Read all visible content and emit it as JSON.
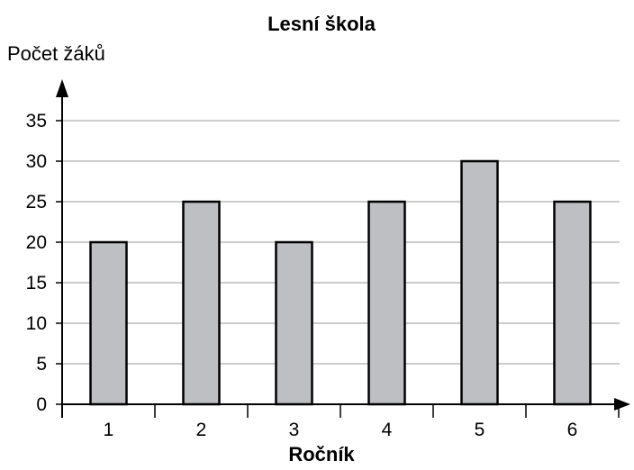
{
  "chart_data": {
    "type": "bar",
    "title": "Lesní škola",
    "ylabel": "Počet žáků",
    "xlabel": "Ročník",
    "categories": [
      "1",
      "2",
      "3",
      "4",
      "5",
      "6"
    ],
    "values": [
      20,
      25,
      20,
      25,
      30,
      25
    ],
    "ylim": [
      0,
      35
    ],
    "yticks": [
      0,
      5,
      10,
      15,
      20,
      25,
      30,
      35
    ],
    "grid": true,
    "colors": {
      "bar_fill": "#bebfc3",
      "bar_stroke": "#000000",
      "grid": "#9a9a9a"
    }
  }
}
